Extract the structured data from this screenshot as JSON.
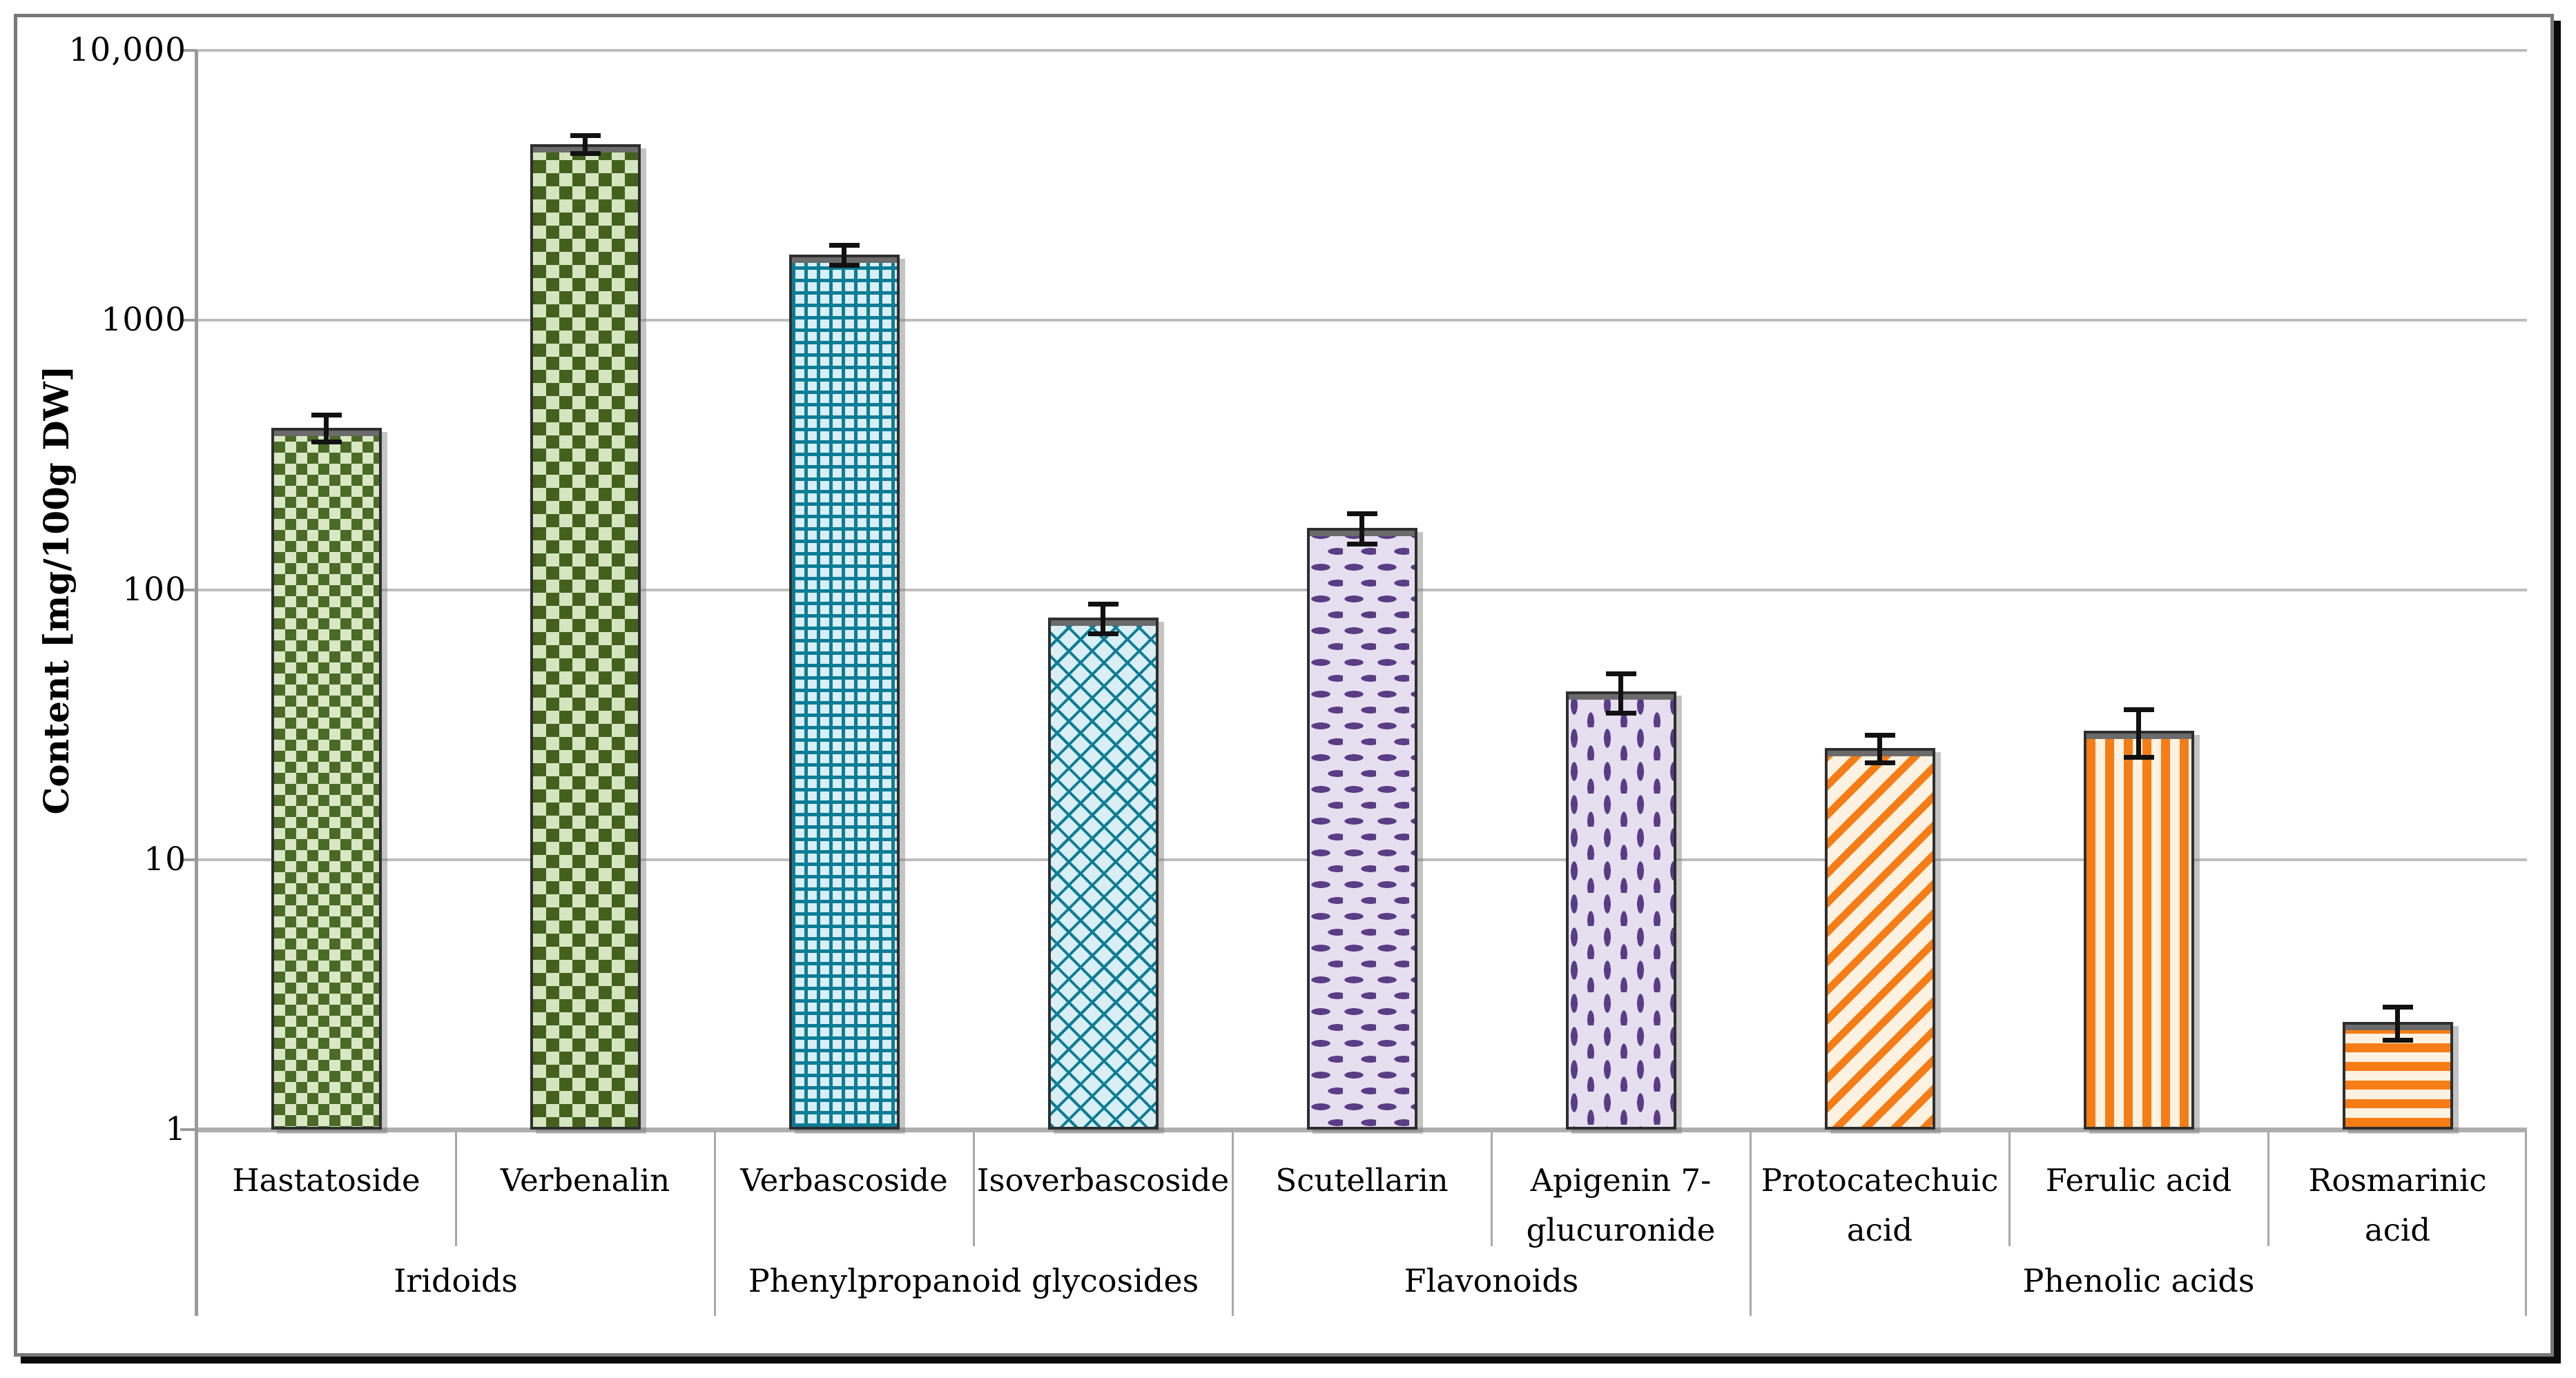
{
  "figure": {
    "y_axis_title": "Content [mg/100g DW]"
  },
  "colors": {
    "gridline": "#bdbdbd",
    "baseline": "#aeaeae",
    "axis_line": "#9a9a9a",
    "separator": "#a8a8a8",
    "bar_border": "#2e2e2e",
    "bar_top_cap": "#6b6b6b",
    "error_bar": "#111111",
    "frame_border": "#787878",
    "frame_shadow": "#0a0a0a",
    "text": "#000000",
    "green_dark": "#4a6b26",
    "green_light": "#d9e7c5",
    "teal": "#0d7d96",
    "teal_light": "#d9eef5",
    "purple": "#5a3d85",
    "purple_light": "#e5dff0",
    "orange": "#f67d15",
    "orange_light": "#fdf2e2"
  },
  "chart_data": {
    "type": "bar",
    "title": "",
    "xlabel": "",
    "ylabel": "Content [mg/100g DW]",
    "y_scale": "log10",
    "ylim": [
      1,
      10000
    ],
    "grid": true,
    "legend_position": "none",
    "error_bars": true,
    "y_ticks": [
      {
        "value": 10000,
        "label": "10,000"
      },
      {
        "value": 1000,
        "label": "1000"
      },
      {
        "value": 100,
        "label": "100"
      },
      {
        "value": 10,
        "label": "10"
      },
      {
        "value": 1,
        "label": "1"
      }
    ],
    "groups": [
      {
        "label": "Iridoids",
        "bars": [
          {
            "label": "Hastatoside",
            "value": 400,
            "error": 45,
            "pattern": "diamond-checker",
            "pattern_color": "#4a6b26",
            "background_color": "#d9e7c5"
          },
          {
            "label": "Verbenalin",
            "value": 4500,
            "error": 350,
            "pattern": "checkerboard",
            "pattern_color": "#43611d",
            "background_color": "#d5e5c0"
          }
        ]
      },
      {
        "label": "Phenylpropanoid glycosides",
        "bars": [
          {
            "label": "Verbascoside",
            "value": 1750,
            "error": 150,
            "pattern": "square-grid",
            "pattern_color": "#0d7d96",
            "background_color": "#d9eef5"
          },
          {
            "label": "Isoverbascoside",
            "value": 79,
            "error": 10,
            "pattern": "diagonal-crosshatch",
            "pattern_color": "#0d7d96",
            "background_color": "#d9eef5"
          }
        ]
      },
      {
        "label": "Flavonoids",
        "bars": [
          {
            "label": "Scutellarin",
            "value": 170,
            "error": 22,
            "pattern": "horizontal-dashes",
            "pattern_color": "#5a3d85",
            "background_color": "#e5dff0"
          },
          {
            "label": "Apigenin 7-glucuronide",
            "value": 42,
            "error": 7,
            "pattern": "vertical-dashes",
            "pattern_color": "#5a3d85",
            "background_color": "#e5dff0"
          }
        ]
      },
      {
        "label": "Phenolic acids",
        "bars": [
          {
            "label": "Protocatechuic acid",
            "value": 26,
            "error": 3,
            "pattern": "diagonal-stripes",
            "pattern_color": "#f67d15",
            "background_color": "#fdf2e2"
          },
          {
            "label": "Ferulic acid",
            "value": 30,
            "error": 6,
            "pattern": "vertical-stripes",
            "pattern_color": "#f67d15",
            "background_color": "#fdf2e2"
          },
          {
            "label": "Rosmarinic acid",
            "value": 2.5,
            "error": 0.35,
            "pattern": "horizontal-stripes",
            "pattern_color": "#f67d15",
            "background_color": "#fdf2e2"
          }
        ]
      }
    ]
  }
}
